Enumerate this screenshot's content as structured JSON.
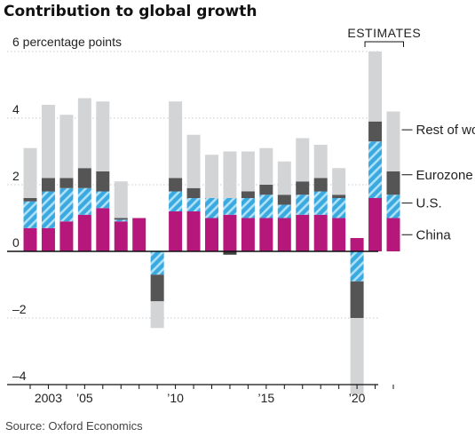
{
  "chart_data": {
    "type": "bar",
    "stacked": true,
    "title": "Contribution to global growth",
    "y_unit_label": "6 percentage points",
    "ylim": [
      -4,
      6
    ],
    "y_ticks": [
      -4,
      -2,
      0,
      2,
      4
    ],
    "y_tick_labels": [
      "–4",
      "–2",
      "0",
      "2",
      "4"
    ],
    "x_tick_labels": [
      {
        "year": 2003,
        "label": "2003"
      },
      {
        "year": 2005,
        "label": "’05"
      },
      {
        "year": 2010,
        "label": "’10"
      },
      {
        "year": 2015,
        "label": "’15"
      },
      {
        "year": 2020,
        "label": "’20"
      }
    ],
    "estimates_label": "ESTIMATES",
    "estimates_years": [
      2021,
      2022
    ],
    "years": [
      2002,
      2003,
      2004,
      2005,
      2006,
      2007,
      2008,
      2009,
      2010,
      2011,
      2012,
      2013,
      2014,
      2015,
      2016,
      2017,
      2018,
      2019,
      2020,
      2021,
      2022
    ],
    "series": [
      {
        "name": "China",
        "color": "#b5177b",
        "values": [
          0.7,
          0.7,
          0.9,
          1.1,
          1.3,
          0.9,
          1.0,
          0,
          1.2,
          1.2,
          1.0,
          1.1,
          1.0,
          1.0,
          1.0,
          1.1,
          1.1,
          1.0,
          0.4,
          1.6,
          1.0
        ]
      },
      {
        "name": "U.S.",
        "color": "#3aa9e0",
        "values": [
          0.8,
          1.1,
          1.0,
          0.8,
          0.5,
          0.05,
          0,
          -0.7,
          0.6,
          0.4,
          0.6,
          0.5,
          0.6,
          0.7,
          0.4,
          0.6,
          0.7,
          0.6,
          -0.9,
          1.7,
          0.7
        ]
      },
      {
        "name": "Eurozone",
        "color": "#555555",
        "values": [
          0.1,
          0.4,
          0.3,
          0.6,
          0.6,
          0.05,
          0,
          -0.8,
          0.4,
          0.3,
          0.0,
          0.0,
          0.2,
          0.3,
          0.3,
          0.4,
          0.4,
          0.1,
          -1.1,
          0.6,
          0.7
        ]
      },
      {
        "name": "Rest of world",
        "color": "#d3d4d6",
        "values": [
          1.5,
          2.2,
          1.9,
          2.1,
          2.1,
          1.1,
          0,
          -0.8,
          2.3,
          1.6,
          1.3,
          1.4,
          1.2,
          1.1,
          1.0,
          1.3,
          1.0,
          0.8,
          -2.3,
          2.1,
          1.8
        ]
      }
    ],
    "china_overlay_2013": -0.1,
    "source": "Source: Oxford Economics"
  }
}
